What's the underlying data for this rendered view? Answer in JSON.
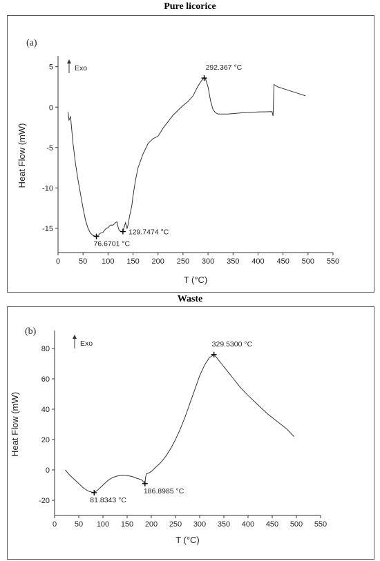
{
  "figure": {
    "panel_a_title": "Pure licorice",
    "panel_b_title": "Waste"
  },
  "chart_data": [
    {
      "type": "line",
      "panel_label": "(a)",
      "title": "Pure licorice",
      "xlabel": "T (°C)",
      "ylabel": "Heat Flow (mW)",
      "exo_label": "Exo",
      "xlim": [
        0,
        550
      ],
      "ylim": [
        -18,
        6
      ],
      "x_ticks": [
        0,
        50,
        100,
        150,
        200,
        250,
        300,
        350,
        400,
        450,
        500,
        550
      ],
      "y_ticks": [
        -15,
        -10,
        -5,
        0,
        5
      ],
      "grid": false,
      "series": [
        {
          "x": [
            20,
            22,
            25,
            30,
            35,
            40,
            45,
            50,
            55,
            60,
            65,
            70,
            76.67,
            80,
            85,
            90,
            95,
            100,
            105,
            110,
            115,
            118,
            120,
            122,
            125,
            129.75,
            132,
            135,
            138,
            140,
            143,
            145,
            148,
            150,
            155,
            160,
            170,
            180,
            190,
            200,
            210,
            220,
            230,
            240,
            250,
            260,
            270,
            275,
            280,
            285,
            290,
            292.37,
            295,
            300,
            305,
            310,
            315,
            320,
            330,
            340,
            350,
            370,
            400,
            428,
            430,
            430.5,
            432,
            440,
            460,
            480,
            495
          ],
          "y": [
            -0.6,
            -1.6,
            -1.2,
            -4.5,
            -7.0,
            -9.0,
            -10.8,
            -12.5,
            -14.0,
            -15.0,
            -15.6,
            -15.9,
            -16.0,
            -15.9,
            -15.6,
            -15.5,
            -15.1,
            -14.9,
            -14.6,
            -14.6,
            -14.3,
            -14.2,
            -14.8,
            -15.2,
            -15.4,
            -15.4,
            -14.9,
            -14.3,
            -15.0,
            -14.6,
            -13.5,
            -13.0,
            -12.0,
            -11.0,
            -9.0,
            -7.5,
            -5.8,
            -4.5,
            -3.9,
            -3.6,
            -2.6,
            -1.8,
            -1.0,
            -0.4,
            0.2,
            0.7,
            1.4,
            2.0,
            2.6,
            3.1,
            3.5,
            3.6,
            3.5,
            2.5,
            0.8,
            -0.3,
            -0.7,
            -0.85,
            -0.85,
            -0.85,
            -0.8,
            -0.7,
            -0.6,
            -0.55,
            -1.1,
            -0.5,
            2.8,
            2.5,
            2.1,
            1.7,
            1.4
          ]
        }
      ],
      "annotations": [
        {
          "x": 76.6701,
          "y": -16.0,
          "label": "76.6701 °C"
        },
        {
          "x": 129.7474,
          "y": -15.4,
          "label": "129.7474 °C"
        },
        {
          "x": 292.367,
          "y": 3.6,
          "label": "292.367 °C"
        }
      ]
    },
    {
      "type": "line",
      "panel_label": "(b)",
      "title": "Waste",
      "xlabel": "T (°C)",
      "ylabel": "Heat Flow (mW)",
      "exo_label": "Exo",
      "xlim": [
        0,
        550
      ],
      "ylim": [
        -30,
        90
      ],
      "x_ticks": [
        0,
        50,
        100,
        150,
        200,
        250,
        300,
        350,
        400,
        450,
        500,
        550
      ],
      "y_ticks": [
        -20,
        0,
        20,
        40,
        60,
        80
      ],
      "grid": false,
      "series": [
        {
          "x": [
            22,
            30,
            40,
            50,
            60,
            70,
            81.83,
            90,
            100,
            110,
            120,
            130,
            140,
            150,
            160,
            170,
            180,
            186.9,
            188,
            190,
            195,
            200,
            210,
            220,
            230,
            240,
            250,
            260,
            270,
            280,
            290,
            300,
            310,
            320,
            329.53,
            335,
            345,
            355,
            370,
            385,
            400,
            420,
            440,
            460,
            480,
            495
          ],
          "y": [
            0,
            -3,
            -6,
            -9,
            -12,
            -14,
            -15,
            -13,
            -10,
            -7,
            -5,
            -4,
            -3.5,
            -3.7,
            -4.3,
            -5.5,
            -6.5,
            -9,
            -5,
            -2.5,
            -2,
            -1,
            2,
            5,
            9,
            14,
            20,
            27,
            35,
            44,
            53,
            62,
            69,
            74,
            76,
            74,
            70,
            66,
            60,
            54,
            49,
            43,
            37,
            32,
            27,
            22
          ]
        }
      ],
      "annotations": [
        {
          "x": 81.8343,
          "y": -15.0,
          "label": "81.8343 °C"
        },
        {
          "x": 186.8985,
          "y": -9.0,
          "label": "186.8985 °C"
        },
        {
          "x": 329.53,
          "y": 76.0,
          "label": "329.5300 °C"
        }
      ]
    }
  ]
}
